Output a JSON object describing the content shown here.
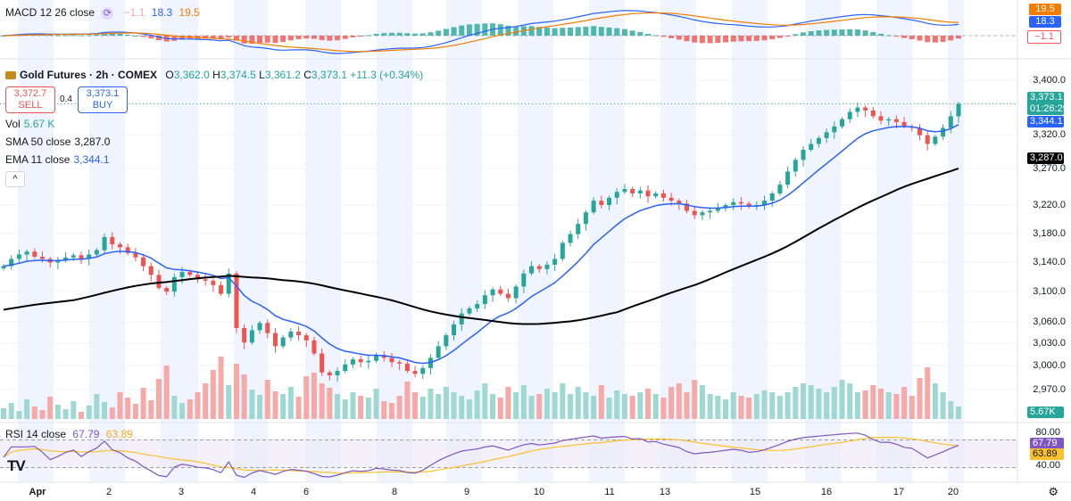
{
  "macd": {
    "label": "MACD 12 26 close",
    "values": [
      "−1.1",
      "18.3",
      "19.5"
    ],
    "scale_boxes": [
      {
        "text": "19.5",
        "color": "#f57c00"
      },
      {
        "text": "18.3",
        "color": "#2962ff"
      },
      {
        "text": "−1.1",
        "color": "#f7525f"
      }
    ]
  },
  "main": {
    "symbol": "Gold Futures · 2h · COMEX",
    "ohlc": [
      {
        "k": "O",
        "v": "3,362.0"
      },
      {
        "k": "H",
        "v": "3,374.5"
      },
      {
        "k": "L",
        "v": "3,361.2"
      },
      {
        "k": "C",
        "v": "3,373.1"
      }
    ],
    "change": "+11.3 (+0.34%)",
    "sell_price": "3,372.7",
    "sell_label": "SELL",
    "spread": "0.4",
    "buy_price": "3,373.1",
    "buy_label": "BUY",
    "vol_label": "Vol",
    "vol_value": "5.67 K",
    "sma_label": "SMA 50 close",
    "sma_value": "3,287.0",
    "ema_label": "EMA 11 close",
    "ema_value": "3,344.1",
    "collapse_icon": "chevron-up-icon"
  },
  "price_scale": {
    "labels": [
      "3,400.0",
      "3,320.0",
      "3,270.0",
      "3,220.0",
      "3,180.0",
      "3,140.0",
      "3,100.0",
      "3,060.0",
      "3,030.0",
      "3,000.0",
      "2,970.0"
    ],
    "last_price": "3,373.1",
    "countdown": "01:26:29",
    "ema_box": "3,344.1",
    "sma_box": "3,287.0",
    "vol_box": "5.67K"
  },
  "rsi": {
    "label": "RSI 14 close",
    "value": "67.79",
    "ma_value": "63.89",
    "scale_labels": [
      "80.00",
      "67.79",
      "63.89",
      "40.00"
    ]
  },
  "time_axis": {
    "labels": [
      "Apr",
      "2",
      "3",
      "4",
      "6",
      "8",
      "9",
      "10",
      "11",
      "13",
      "15",
      "16",
      "17",
      "20"
    ]
  },
  "colors": {
    "up": "#26a69a",
    "down": "#ef5350",
    "ema": "#2962ff",
    "sma": "#000000",
    "macd_signal": "#f57c00",
    "rsi_line": "#7e57c2",
    "rsi_ma": "#fbc02d"
  },
  "chart_data": {
    "type": "candlestick",
    "title": "Gold Futures · 2h · COMEX",
    "price_range": [
      2940,
      3430
    ],
    "x_labels": [
      "Apr",
      "2",
      "3",
      "4",
      "6",
      "8",
      "9",
      "10",
      "11",
      "13",
      "15",
      "16",
      "17",
      "20"
    ],
    "close_path": [
      3150,
      3160,
      3166,
      3170,
      3163,
      3160,
      3155,
      3158,
      3162,
      3165,
      3160,
      3166,
      3172,
      3190,
      3180,
      3176,
      3168,
      3162,
      3150,
      3138,
      3120,
      3115,
      3135,
      3142,
      3138,
      3132,
      3130,
      3124,
      3112,
      3140,
      3065,
      3045,
      3062,
      3072,
      3058,
      3040,
      3052,
      3060,
      3055,
      3048,
      3030,
      3004,
      3000,
      3006,
      3015,
      3022,
      3018,
      3020,
      3028,
      3024,
      3018,
      3016,
      3006,
      3002,
      3010,
      3024,
      3040,
      3055,
      3070,
      3085,
      3092,
      3098,
      3110,
      3118,
      3112,
      3106,
      3122,
      3140,
      3150,
      3146,
      3152,
      3160,
      3182,
      3194,
      3208,
      3224,
      3240,
      3234,
      3244,
      3252,
      3256,
      3250,
      3254,
      3246,
      3250,
      3244,
      3240,
      3236,
      3226,
      3220,
      3224,
      3226,
      3230,
      3234,
      3238,
      3236,
      3232,
      3234,
      3240,
      3250,
      3262,
      3280,
      3296,
      3310,
      3318,
      3326,
      3334,
      3342,
      3352,
      3362,
      3368,
      3364,
      3356,
      3350,
      3352,
      3348,
      3342,
      3340,
      3330,
      3318,
      3328,
      3340,
      3356,
      3373
    ],
    "series": [
      {
        "name": "EMA 11 close",
        "last": 3344.1
      },
      {
        "name": "SMA 50 close",
        "last": 3287.0
      },
      {
        "name": "Vol",
        "last": 5670
      }
    ],
    "indicators": {
      "macd": {
        "macd": 18.3,
        "signal": 19.5,
        "histogram": -1.1
      },
      "rsi": {
        "value": 67.79,
        "ma": 63.89,
        "bands": [
          40,
          80
        ]
      }
    }
  }
}
